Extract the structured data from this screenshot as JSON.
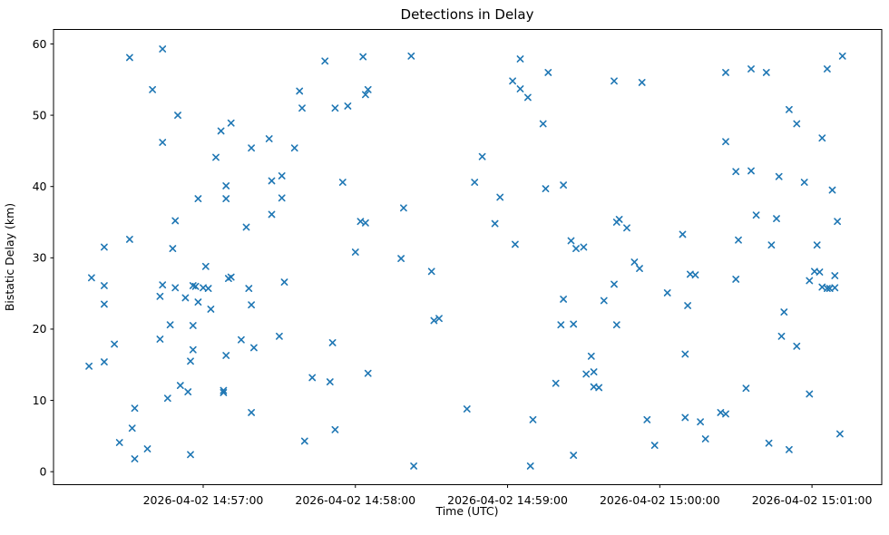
{
  "figure": {
    "title": "Detections in Delay",
    "xlabel": "Time (UTC)",
    "ylabel": "Bistatic Delay (km)"
  },
  "chart_data": {
    "type": "scatter",
    "title": "Detections in Delay",
    "xlabel": "Time (UTC)",
    "ylabel": "Bistatic Delay (km)",
    "marker": "x",
    "marker_color": "#1f77b4",
    "background_color": "#ffffff",
    "grid": false,
    "legend": null,
    "x_unit": "seconds since 2026-04-02 14:56:00 UTC",
    "xlim": [
      1,
      327.5
    ],
    "ylim": [
      -1.82,
      62.03
    ],
    "y_ticks": [
      0,
      10,
      20,
      30,
      40,
      50,
      60
    ],
    "x_ticks": [
      {
        "t": 60,
        "label": "2026-04-02 14:57:00"
      },
      {
        "t": 120,
        "label": "2026-04-02 14:58:00"
      },
      {
        "t": 180,
        "label": "2026-04-02 14:59:00"
      },
      {
        "t": 240,
        "label": "2026-04-02 15:00:00"
      },
      {
        "t": 300,
        "label": "2026-04-02 15:01:00"
      }
    ],
    "points": [
      [
        44,
        59.3
      ],
      [
        31,
        58.1
      ],
      [
        40,
        53.6
      ],
      [
        50,
        50.0
      ],
      [
        67,
        47.8
      ],
      [
        71,
        48.9
      ],
      [
        44,
        46.2
      ],
      [
        65,
        44.1
      ],
      [
        79,
        45.4
      ],
      [
        108,
        57.6
      ],
      [
        123,
        58.2
      ],
      [
        142,
        58.3
      ],
      [
        98,
        53.4
      ],
      [
        125,
        53.6
      ],
      [
        124,
        52.9
      ],
      [
        99,
        51.0
      ],
      [
        112,
        51.0
      ],
      [
        117,
        51.3
      ],
      [
        86,
        46.7
      ],
      [
        96,
        45.4
      ],
      [
        185,
        57.9
      ],
      [
        196,
        56.0
      ],
      [
        182,
        54.8
      ],
      [
        185,
        53.7
      ],
      [
        188,
        52.5
      ],
      [
        222,
        54.8
      ],
      [
        233,
        54.6
      ],
      [
        194,
        48.8
      ],
      [
        170,
        44.2
      ],
      [
        312,
        58.3
      ],
      [
        306,
        56.5
      ],
      [
        266,
        56.0
      ],
      [
        276,
        56.5
      ],
      [
        282,
        56.0
      ],
      [
        291,
        50.8
      ],
      [
        294,
        48.8
      ],
      [
        304,
        46.8
      ],
      [
        266,
        46.3
      ],
      [
        270,
        42.1
      ],
      [
        276,
        42.2
      ],
      [
        69,
        40.1
      ],
      [
        58,
        38.3
      ],
      [
        69,
        38.3
      ],
      [
        49,
        35.2
      ],
      [
        77,
        34.3
      ],
      [
        31,
        32.6
      ],
      [
        21,
        31.5
      ],
      [
        48,
        31.3
      ],
      [
        61,
        28.8
      ],
      [
        16,
        27.2
      ],
      [
        21,
        26.1
      ],
      [
        44,
        26.2
      ],
      [
        49,
        25.8
      ],
      [
        70,
        27.1
      ],
      [
        71,
        27.3
      ],
      [
        56,
        26.1
      ],
      [
        57,
        26.0
      ],
      [
        60,
        25.8
      ],
      [
        62,
        25.7
      ],
      [
        53,
        24.4
      ],
      [
        58,
        23.8
      ],
      [
        63,
        22.8
      ],
      [
        78,
        25.7
      ],
      [
        43,
        24.6
      ],
      [
        21,
        23.5
      ],
      [
        79,
        23.4
      ],
      [
        87,
        40.8
      ],
      [
        91,
        41.5
      ],
      [
        115,
        40.6
      ],
      [
        91,
        38.4
      ],
      [
        87,
        36.1
      ],
      [
        139,
        37.0
      ],
      [
        122,
        35.1
      ],
      [
        124,
        34.9
      ],
      [
        120,
        30.8
      ],
      [
        138,
        29.9
      ],
      [
        150,
        28.1
      ],
      [
        92,
        26.6
      ],
      [
        151,
        21.2
      ],
      [
        153,
        21.5
      ],
      [
        167,
        40.6
      ],
      [
        177,
        38.5
      ],
      [
        195,
        39.7
      ],
      [
        202,
        40.2
      ],
      [
        175,
        34.8
      ],
      [
        183,
        31.9
      ],
      [
        223,
        35.0
      ],
      [
        224,
        35.4
      ],
      [
        227,
        34.2
      ],
      [
        205,
        32.4
      ],
      [
        207,
        31.3
      ],
      [
        210,
        31.5
      ],
      [
        230,
        29.4
      ],
      [
        232,
        28.5
      ],
      [
        222,
        26.3
      ],
      [
        202,
        24.2
      ],
      [
        218,
        24.0
      ],
      [
        201,
        20.6
      ],
      [
        206,
        20.7
      ],
      [
        223,
        20.6
      ],
      [
        287,
        41.4
      ],
      [
        297,
        40.6
      ],
      [
        308,
        39.5
      ],
      [
        278,
        36.0
      ],
      [
        286,
        35.5
      ],
      [
        310,
        35.1
      ],
      [
        249,
        33.3
      ],
      [
        271,
        32.5
      ],
      [
        284,
        31.8
      ],
      [
        302,
        31.8
      ],
      [
        252,
        27.7
      ],
      [
        254,
        27.6
      ],
      [
        270,
        27.0
      ],
      [
        243,
        25.1
      ],
      [
        251,
        23.3
      ],
      [
        289,
        22.4
      ],
      [
        301,
        28.1
      ],
      [
        303,
        28.0
      ],
      [
        309,
        27.5
      ],
      [
        299,
        26.8
      ],
      [
        304,
        25.9
      ],
      [
        306,
        25.7
      ],
      [
        307,
        25.7
      ],
      [
        309,
        25.8
      ],
      [
        47,
        20.6
      ],
      [
        56,
        20.5
      ],
      [
        43,
        18.6
      ],
      [
        25,
        17.9
      ],
      [
        56,
        17.1
      ],
      [
        55,
        15.5
      ],
      [
        15,
        14.8
      ],
      [
        21,
        15.4
      ],
      [
        69,
        16.3
      ],
      [
        75,
        18.5
      ],
      [
        80,
        17.4
      ],
      [
        51,
        12.1
      ],
      [
        54,
        11.2
      ],
      [
        46,
        10.3
      ],
      [
        68,
        11.4
      ],
      [
        68,
        11.1
      ],
      [
        33,
        8.9
      ],
      [
        79,
        8.3
      ],
      [
        32,
        6.1
      ],
      [
        27,
        4.1
      ],
      [
        38,
        3.2
      ],
      [
        33,
        1.8
      ],
      [
        55,
        2.4
      ],
      [
        90,
        19.0
      ],
      [
        111,
        18.1
      ],
      [
        103,
        13.2
      ],
      [
        110,
        12.6
      ],
      [
        125,
        13.8
      ],
      [
        112,
        5.9
      ],
      [
        100,
        4.3
      ],
      [
        143,
        0.8
      ],
      [
        213,
        16.2
      ],
      [
        211,
        13.7
      ],
      [
        214,
        14.0
      ],
      [
        199,
        12.4
      ],
      [
        214,
        11.9
      ],
      [
        216,
        11.8
      ],
      [
        164,
        8.8
      ],
      [
        190,
        7.3
      ],
      [
        235,
        7.3
      ],
      [
        238,
        3.7
      ],
      [
        206,
        2.3
      ],
      [
        189,
        0.8
      ],
      [
        288,
        19.0
      ],
      [
        294,
        17.6
      ],
      [
        250,
        16.5
      ],
      [
        274,
        11.7
      ],
      [
        299,
        10.9
      ],
      [
        264,
        8.3
      ],
      [
        266,
        8.1
      ],
      [
        250,
        7.6
      ],
      [
        256,
        7.0
      ],
      [
        258,
        4.6
      ],
      [
        283,
        4.0
      ],
      [
        291,
        3.1
      ],
      [
        311,
        5.3
      ]
    ]
  }
}
